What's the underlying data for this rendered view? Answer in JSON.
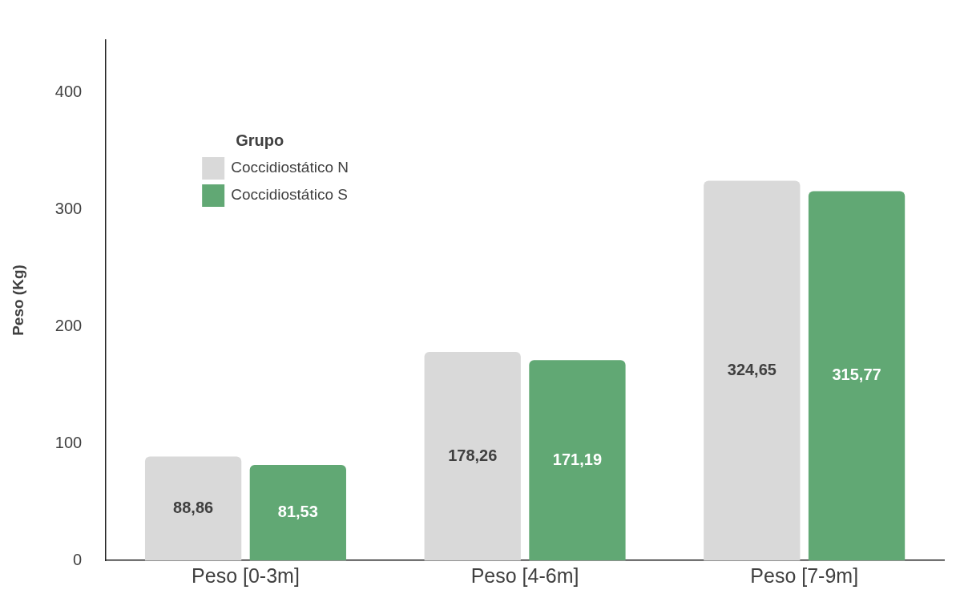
{
  "chart_data": {
    "type": "bar",
    "ylabel": "Peso (Kg)",
    "legend_title": "Grupo",
    "legend": "top left",
    "grid": false,
    "categories": [
      "Peso [0-3m]",
      "Peso [4-6m]",
      "Peso [7-9m]"
    ],
    "ylim": [
      0,
      445
    ],
    "yticks": [
      0,
      100,
      200,
      300,
      400
    ],
    "series": [
      {
        "name": "Coccidiostático N",
        "color": "#d9d9d9",
        "values": [
          88.86,
          178.26,
          324.65
        ],
        "value_labels": [
          "88,86",
          "178,26",
          "324,65"
        ]
      },
      {
        "name": "Coccidiostático S",
        "color": "#61a874",
        "values": [
          81.53,
          171.19,
          315.77
        ],
        "value_labels": [
          "81,53",
          "171,19",
          "315,77"
        ]
      }
    ]
  }
}
